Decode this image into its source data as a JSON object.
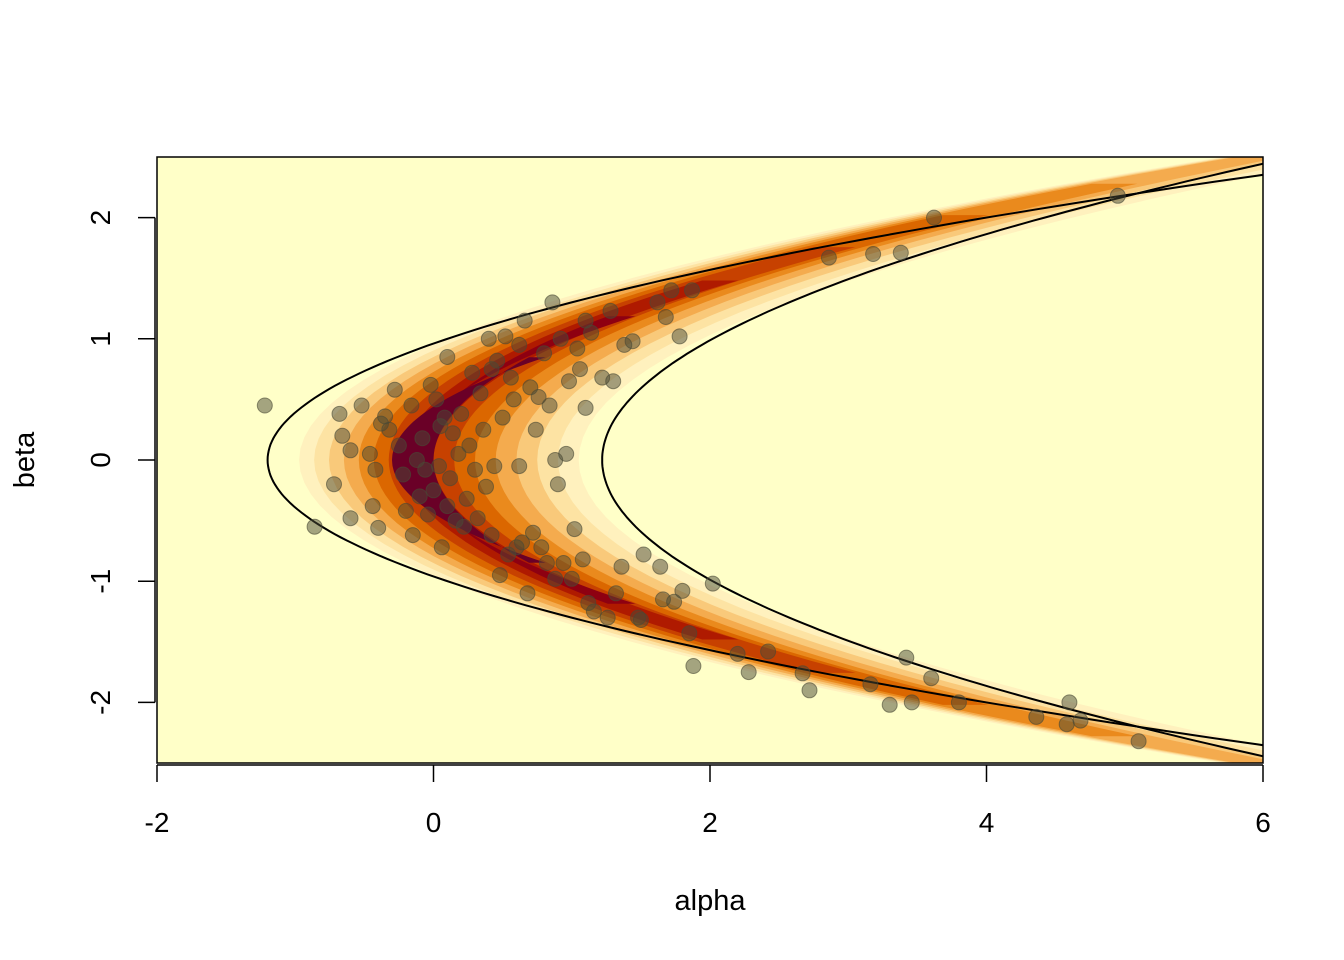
{
  "chart_data": {
    "type": "scatter",
    "title": "",
    "xlabel": "alpha",
    "ylabel": "beta",
    "xlim": [
      -2,
      6
    ],
    "ylim": [
      -2.5,
      2.5
    ],
    "x_ticks": [
      -2,
      0,
      2,
      4,
      6
    ],
    "y_ticks": [
      -2,
      -1,
      0,
      1,
      2
    ],
    "x_tick_labels": [
      "-2",
      "0",
      "2",
      "4",
      "6"
    ],
    "y_tick_labels": [
      "-2",
      "-1",
      "0",
      "1",
      "2"
    ],
    "grid": false,
    "legend": "none",
    "background_color": "#FFFFC8",
    "density_palette": [
      "#FFFFC8",
      "#FFF1BE",
      "#FDE3A3",
      "#F9C97A",
      "#F4AB4E",
      "#EA8A1D",
      "#DB6700",
      "#C74100",
      "#AF1A00",
      "#8E0011",
      "#6A0027"
    ],
    "point_color": "#4A4A36",
    "curves": [
      {
        "name": "",
        "x_of_beta": "alpha = 1.3*beta^2 - 1.2",
        "beta_range": [
          -2.55,
          2.55
        ]
      },
      {
        "name": "",
        "x_of_beta": "alpha = 0.8*beta^2 + 1.22",
        "beta_range": [
          -2.5,
          2.5
        ]
      }
    ],
    "series": [
      {
        "name": "",
        "points": [
          [
            -1.22,
            0.45
          ],
          [
            -0.86,
            -0.55
          ],
          [
            -0.72,
            -0.2
          ],
          [
            -0.68,
            0.38
          ],
          [
            -0.66,
            0.2
          ],
          [
            -0.6,
            0.08
          ],
          [
            -0.6,
            -0.48
          ],
          [
            -0.52,
            0.45
          ],
          [
            -0.46,
            0.05
          ],
          [
            -0.44,
            -0.38
          ],
          [
            -0.42,
            -0.08
          ],
          [
            -0.4,
            -0.56
          ],
          [
            -0.38,
            0.3
          ],
          [
            -0.35,
            0.36
          ],
          [
            -0.32,
            0.25
          ],
          [
            -0.28,
            0.58
          ],
          [
            -0.25,
            0.12
          ],
          [
            -0.22,
            -0.12
          ],
          [
            -0.2,
            -0.42
          ],
          [
            -0.16,
            0.45
          ],
          [
            -0.15,
            -0.62
          ],
          [
            -0.12,
            0.0
          ],
          [
            -0.1,
            -0.3
          ],
          [
            -0.08,
            0.18
          ],
          [
            -0.06,
            -0.08
          ],
          [
            -0.04,
            -0.45
          ],
          [
            -0.02,
            0.62
          ],
          [
            0.0,
            -0.25
          ],
          [
            0.02,
            0.5
          ],
          [
            0.04,
            -0.05
          ],
          [
            0.05,
            0.28
          ],
          [
            0.06,
            -0.72
          ],
          [
            0.08,
            0.35
          ],
          [
            0.1,
            0.85
          ],
          [
            0.1,
            -0.38
          ],
          [
            0.12,
            -0.15
          ],
          [
            0.14,
            0.22
          ],
          [
            0.16,
            -0.5
          ],
          [
            0.18,
            0.05
          ],
          [
            0.2,
            0.38
          ],
          [
            0.22,
            -0.55
          ],
          [
            0.24,
            -0.32
          ],
          [
            0.26,
            0.12
          ],
          [
            0.28,
            0.72
          ],
          [
            0.3,
            -0.08
          ],
          [
            0.32,
            -0.48
          ],
          [
            0.34,
            0.55
          ],
          [
            0.36,
            0.25
          ],
          [
            0.38,
            -0.22
          ],
          [
            0.4,
            1.0
          ],
          [
            0.42,
            -0.62
          ],
          [
            0.42,
            0.75
          ],
          [
            0.44,
            -0.05
          ],
          [
            0.46,
            0.82
          ],
          [
            0.48,
            -0.95
          ],
          [
            0.5,
            0.35
          ],
          [
            0.52,
            1.02
          ],
          [
            0.54,
            -0.78
          ],
          [
            0.56,
            0.68
          ],
          [
            0.58,
            0.5
          ],
          [
            0.6,
            -0.72
          ],
          [
            0.62,
            0.95
          ],
          [
            0.62,
            -0.05
          ],
          [
            0.64,
            -0.68
          ],
          [
            0.66,
            1.15
          ],
          [
            0.68,
            -1.1
          ],
          [
            0.7,
            0.6
          ],
          [
            0.72,
            -0.6
          ],
          [
            0.74,
            0.25
          ],
          [
            0.76,
            0.52
          ],
          [
            0.78,
            -0.72
          ],
          [
            0.8,
            0.88
          ],
          [
            0.82,
            -0.85
          ],
          [
            0.84,
            0.45
          ],
          [
            0.86,
            1.3
          ],
          [
            0.88,
            -0.98
          ],
          [
            0.88,
            0.0
          ],
          [
            0.9,
            -0.2
          ],
          [
            0.92,
            1.0
          ],
          [
            0.94,
            -0.85
          ],
          [
            0.96,
            0.05
          ],
          [
            0.98,
            0.65
          ],
          [
            1.0,
            -0.98
          ],
          [
            1.02,
            -0.57
          ],
          [
            1.04,
            0.92
          ],
          [
            1.06,
            0.75
          ],
          [
            1.08,
            -0.82
          ],
          [
            1.1,
            1.15
          ],
          [
            1.1,
            0.43
          ],
          [
            1.12,
            -1.18
          ],
          [
            1.14,
            1.05
          ],
          [
            1.16,
            -1.25
          ],
          [
            1.22,
            0.68
          ],
          [
            1.26,
            -1.3
          ],
          [
            1.28,
            1.23
          ],
          [
            1.3,
            0.65
          ],
          [
            1.32,
            -1.1
          ],
          [
            1.36,
            -0.88
          ],
          [
            1.38,
            0.95
          ],
          [
            1.44,
            0.98
          ],
          [
            1.48,
            -1.3
          ],
          [
            1.5,
            -1.32
          ],
          [
            1.52,
            -0.78
          ],
          [
            1.62,
            1.3
          ],
          [
            1.64,
            -0.88
          ],
          [
            1.66,
            -1.15
          ],
          [
            1.68,
            1.18
          ],
          [
            1.72,
            1.4
          ],
          [
            1.74,
            -1.17
          ],
          [
            1.78,
            1.02
          ],
          [
            1.8,
            -1.08
          ],
          [
            1.85,
            -1.43
          ],
          [
            1.87,
            1.4
          ],
          [
            1.88,
            -1.7
          ],
          [
            2.02,
            -1.02
          ],
          [
            2.2,
            -1.6
          ],
          [
            2.28,
            -1.75
          ],
          [
            2.42,
            -1.58
          ],
          [
            2.67,
            -1.76
          ],
          [
            2.72,
            -1.9
          ],
          [
            2.86,
            1.67
          ],
          [
            3.16,
            -1.85
          ],
          [
            3.18,
            1.7
          ],
          [
            3.3,
            -2.02
          ],
          [
            3.38,
            1.71
          ],
          [
            3.42,
            -1.63
          ],
          [
            3.46,
            -2.0
          ],
          [
            3.6,
            -1.8
          ],
          [
            3.62,
            2.0
          ],
          [
            3.8,
            -2.0
          ],
          [
            4.36,
            -2.12
          ],
          [
            4.58,
            -2.18
          ],
          [
            4.6,
            -2.0
          ],
          [
            4.68,
            -2.15
          ],
          [
            4.95,
            2.18
          ],
          [
            5.1,
            -2.32
          ]
        ]
      }
    ]
  }
}
